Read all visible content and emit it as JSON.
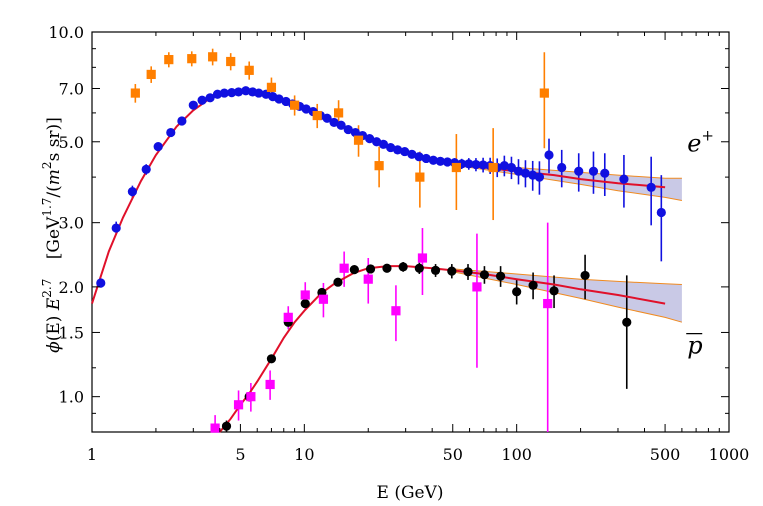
{
  "chart_data": {
    "type": "scatter",
    "title": "",
    "xlabel": "E  (GeV)",
    "ylabel_parts": {
      "phi": "ϕ",
      "phi_arg": "(E)",
      "E": "E",
      "E_exp": "2.7",
      "unit_open": "[GeV",
      "unit_exp": "1.7",
      "unit_slash": "/(",
      "m": "m",
      "m_exp": "2",
      "unit_close": "s sr)]"
    },
    "x_scale": "log",
    "y_scale": "log",
    "xlim": [
      1,
      1000
    ],
    "ylim": [
      0.8,
      10.0
    ],
    "x_ticks": [
      {
        "value": 1,
        "label": "1"
      },
      {
        "value": 5,
        "label": "5"
      },
      {
        "value": 10,
        "label": "10"
      },
      {
        "value": 50,
        "label": "50"
      },
      {
        "value": 100,
        "label": "100"
      },
      {
        "value": 500,
        "label": "500"
      },
      {
        "value": 1000,
        "label": "1000"
      }
    ],
    "y_ticks": [
      {
        "value": 1.0,
        "label": "1.0"
      },
      {
        "value": 1.5,
        "label": "1.5"
      },
      {
        "value": 2.0,
        "label": "2.0"
      },
      {
        "value": 3.0,
        "label": "3.0"
      },
      {
        "value": 5.0,
        "label": "5.0"
      },
      {
        "value": 7.0,
        "label": "7.0"
      },
      {
        "value": 10.0,
        "label": "10.0"
      }
    ],
    "annotations": [
      {
        "id": "e-plus",
        "text": "e",
        "superscript": "+",
        "x": 740,
        "y": 4.95
      },
      {
        "id": "p-bar",
        "text": "p",
        "overline": true,
        "x": 740,
        "y": 1.38
      }
    ],
    "colors": {
      "frame": "#000000",
      "fit": "#e0102a",
      "band_fill": "#c9c9e6",
      "band_edge": "#f08a20",
      "ams_positron": "#1010e0",
      "pamela_positron": "#ff7f00",
      "ams_antiproton": "#000000",
      "pamela_antiproton": "#ff00ff"
    },
    "series": [
      {
        "name": "positron-circles",
        "marker": "circle",
        "color": "#1010e0",
        "points": [
          [
            1.1,
            2.05,
            0.06
          ],
          [
            1.3,
            2.9,
            0.12
          ],
          [
            1.55,
            3.65,
            0.14
          ],
          [
            1.8,
            4.2,
            0.14
          ],
          [
            2.05,
            4.85,
            0.12
          ],
          [
            2.35,
            5.3,
            0.1
          ],
          [
            2.65,
            5.7,
            0.08
          ],
          [
            3.0,
            6.3,
            0.08
          ],
          [
            3.3,
            6.5,
            0.08
          ],
          [
            3.6,
            6.6,
            0.08
          ],
          [
            3.9,
            6.75,
            0.07
          ],
          [
            4.2,
            6.8,
            0.07
          ],
          [
            4.55,
            6.82,
            0.07
          ],
          [
            4.9,
            6.85,
            0.07
          ],
          [
            5.3,
            6.9,
            0.07
          ],
          [
            5.7,
            6.85,
            0.07
          ],
          [
            6.1,
            6.8,
            0.07
          ],
          [
            6.6,
            6.75,
            0.07
          ],
          [
            7.1,
            6.65,
            0.07
          ],
          [
            7.6,
            6.55,
            0.07
          ],
          [
            8.2,
            6.45,
            0.07
          ],
          [
            8.8,
            6.35,
            0.07
          ],
          [
            9.5,
            6.25,
            0.07
          ],
          [
            10.2,
            6.15,
            0.07
          ],
          [
            11.0,
            6.05,
            0.07
          ],
          [
            11.9,
            5.9,
            0.07
          ],
          [
            12.8,
            5.8,
            0.07
          ],
          [
            13.8,
            5.65,
            0.07
          ],
          [
            14.9,
            5.55,
            0.07
          ],
          [
            16.1,
            5.4,
            0.07
          ],
          [
            17.4,
            5.3,
            0.07
          ],
          [
            18.8,
            5.2,
            0.08
          ],
          [
            20.3,
            5.1,
            0.08
          ],
          [
            21.9,
            5.0,
            0.08
          ],
          [
            23.6,
            4.92,
            0.08
          ],
          [
            25.5,
            4.82,
            0.08
          ],
          [
            27.5,
            4.75,
            0.08
          ],
          [
            29.7,
            4.7,
            0.08
          ],
          [
            32.1,
            4.62,
            0.09
          ],
          [
            34.7,
            4.55,
            0.09
          ],
          [
            37.5,
            4.5,
            0.1
          ],
          [
            40.5,
            4.45,
            0.1
          ],
          [
            43.7,
            4.42,
            0.11
          ],
          [
            47.2,
            4.4,
            0.12
          ],
          [
            51.0,
            4.38,
            0.13
          ],
          [
            55.1,
            4.35,
            0.14
          ],
          [
            59.5,
            4.35,
            0.16
          ],
          [
            64.3,
            4.33,
            0.18
          ],
          [
            69.5,
            4.32,
            0.2
          ],
          [
            75.0,
            4.3,
            0.22
          ],
          [
            81.0,
            4.25,
            0.25
          ],
          [
            87.5,
            4.3,
            0.28
          ],
          [
            94.5,
            4.25,
            0.3
          ],
          [
            102.0,
            4.15,
            0.33
          ],
          [
            110.0,
            4.1,
            0.35
          ],
          [
            119.0,
            4.05,
            0.38
          ],
          [
            128.0,
            4.0,
            0.42
          ],
          [
            142.0,
            4.6,
            0.5
          ],
          [
            163.0,
            4.25,
            0.5
          ],
          [
            196.0,
            4.15,
            0.5
          ],
          [
            230.0,
            4.15,
            0.55
          ],
          [
            260.0,
            4.1,
            0.55
          ],
          [
            320.0,
            3.95,
            0.65
          ],
          [
            430.0,
            3.75,
            0.8
          ],
          [
            480.0,
            3.2,
            0.85
          ]
        ]
      },
      {
        "name": "positron-squares",
        "marker": "square",
        "color": "#ff7f00",
        "points": [
          [
            1.6,
            6.8,
            0.4
          ],
          [
            1.9,
            7.65,
            0.4
          ],
          [
            2.3,
            8.4,
            0.4
          ],
          [
            2.95,
            8.45,
            0.4
          ],
          [
            3.7,
            8.55,
            0.45
          ],
          [
            4.5,
            8.3,
            0.45
          ],
          [
            5.5,
            7.85,
            0.45
          ],
          [
            7.0,
            7.05,
            0.45
          ],
          [
            9.0,
            6.3,
            0.4
          ],
          [
            11.5,
            5.9,
            0.45
          ],
          [
            14.5,
            6.0,
            0.5
          ],
          [
            18.0,
            5.05,
            0.5
          ],
          [
            22.5,
            4.3,
            0.55
          ],
          [
            35.0,
            4.0,
            0.7
          ],
          [
            52.0,
            4.25,
            1.0
          ],
          [
            77.5,
            4.25,
            1.2
          ],
          [
            135.0,
            6.8,
            2.0
          ]
        ]
      },
      {
        "name": "antiproton-circles",
        "marker": "circle",
        "color": "#000000",
        "points": [
          [
            4.3,
            0.83,
            0.03
          ],
          [
            5.5,
            1.0,
            0.03
          ],
          [
            7.0,
            1.27,
            0.03
          ],
          [
            8.4,
            1.6,
            0.04
          ],
          [
            10.1,
            1.8,
            0.05
          ],
          [
            12.1,
            1.93,
            0.05
          ],
          [
            14.4,
            2.06,
            0.05
          ],
          [
            17.2,
            2.23,
            0.06
          ],
          [
            20.5,
            2.24,
            0.06
          ],
          [
            24.5,
            2.25,
            0.06
          ],
          [
            29.2,
            2.27,
            0.07
          ],
          [
            34.8,
            2.25,
            0.08
          ],
          [
            41.5,
            2.22,
            0.09
          ],
          [
            49.5,
            2.21,
            0.1
          ],
          [
            59.0,
            2.2,
            0.11
          ],
          [
            70.5,
            2.16,
            0.12
          ],
          [
            84.0,
            2.14,
            0.14
          ],
          [
            100.0,
            1.94,
            0.15
          ],
          [
            119.5,
            2.02,
            0.17
          ],
          [
            150.0,
            1.95,
            0.2
          ],
          [
            210.0,
            2.15,
            0.3
          ],
          [
            330.0,
            1.6,
            0.55
          ]
        ]
      },
      {
        "name": "antiproton-squares",
        "marker": "square",
        "color": "#ff00ff",
        "points": [
          [
            3.8,
            0.82,
            0.07
          ],
          [
            4.9,
            0.95,
            0.09
          ],
          [
            5.6,
            1.0,
            0.09
          ],
          [
            6.9,
            1.08,
            0.1
          ],
          [
            8.4,
            1.65,
            0.12
          ],
          [
            10.1,
            1.9,
            0.16
          ],
          [
            12.3,
            1.85,
            0.2
          ],
          [
            15.4,
            2.25,
            0.25
          ],
          [
            20.0,
            2.1,
            0.3
          ],
          [
            27.0,
            1.72,
            0.3
          ],
          [
            36.0,
            2.4,
            0.5
          ],
          [
            65.0,
            2.0,
            0.8
          ],
          [
            140.0,
            1.8,
            1.2
          ]
        ]
      }
    ],
    "fit_curves": [
      {
        "name": "positron-fit",
        "color": "#e0102a",
        "points": [
          [
            1.0,
            1.8
          ],
          [
            1.2,
            2.5
          ],
          [
            1.4,
            3.1
          ],
          [
            1.7,
            3.9
          ],
          [
            2.0,
            4.6
          ],
          [
            2.5,
            5.5
          ],
          [
            3.0,
            6.1
          ],
          [
            3.5,
            6.5
          ],
          [
            4.0,
            6.75
          ],
          [
            5.0,
            6.9
          ],
          [
            6.0,
            6.85
          ],
          [
            7.0,
            6.7
          ],
          [
            8.5,
            6.45
          ],
          [
            10.0,
            6.2
          ],
          [
            13.0,
            5.8
          ],
          [
            16.0,
            5.45
          ],
          [
            20.0,
            5.1
          ],
          [
            25.0,
            4.85
          ],
          [
            30.0,
            4.65
          ],
          [
            40.0,
            4.45
          ],
          [
            50.0,
            4.35
          ],
          [
            70.0,
            4.25
          ],
          [
            100.0,
            4.15
          ],
          [
            150.0,
            4.05
          ],
          [
            200.0,
            3.95
          ],
          [
            300.0,
            3.85
          ],
          [
            500.0,
            3.75
          ]
        ]
      },
      {
        "name": "antiproton-fit",
        "color": "#e0102a",
        "points": [
          [
            4.0,
            0.8
          ],
          [
            4.5,
            0.87
          ],
          [
            5.0,
            0.95
          ],
          [
            5.5,
            1.02
          ],
          [
            6.0,
            1.1
          ],
          [
            7.0,
            1.27
          ],
          [
            8.0,
            1.45
          ],
          [
            9.0,
            1.6
          ],
          [
            10.0,
            1.72
          ],
          [
            12.0,
            1.92
          ],
          [
            14.0,
            2.05
          ],
          [
            17.0,
            2.18
          ],
          [
            20.0,
            2.25
          ],
          [
            25.0,
            2.28
          ],
          [
            30.0,
            2.28
          ],
          [
            40.0,
            2.25
          ],
          [
            50.0,
            2.22
          ],
          [
            70.0,
            2.17
          ],
          [
            100.0,
            2.1
          ],
          [
            150.0,
            2.03
          ],
          [
            200.0,
            1.97
          ],
          [
            300.0,
            1.9
          ],
          [
            500.0,
            1.8
          ]
        ]
      }
    ],
    "bands": [
      {
        "name": "positron-band",
        "upper": [
          [
            50.0,
            4.38
          ],
          [
            100.0,
            4.25
          ],
          [
            200.0,
            4.12
          ],
          [
            300.0,
            4.05
          ],
          [
            500.0,
            3.97
          ],
          [
            600.0,
            3.97
          ]
        ],
        "lower": [
          [
            50.0,
            4.32
          ],
          [
            100.0,
            4.07
          ],
          [
            200.0,
            3.82
          ],
          [
            300.0,
            3.67
          ],
          [
            500.0,
            3.52
          ],
          [
            600.0,
            3.45
          ]
        ]
      },
      {
        "name": "antiproton-band",
        "upper": [
          [
            50.0,
            2.24
          ],
          [
            100.0,
            2.17
          ],
          [
            200.0,
            2.1
          ],
          [
            300.0,
            2.07
          ],
          [
            500.0,
            2.04
          ],
          [
            600.0,
            2.03
          ]
        ],
        "lower": [
          [
            50.0,
            2.2
          ],
          [
            100.0,
            2.03
          ],
          [
            200.0,
            1.86
          ],
          [
            300.0,
            1.76
          ],
          [
            500.0,
            1.65
          ],
          [
            600.0,
            1.6
          ]
        ]
      }
    ]
  }
}
